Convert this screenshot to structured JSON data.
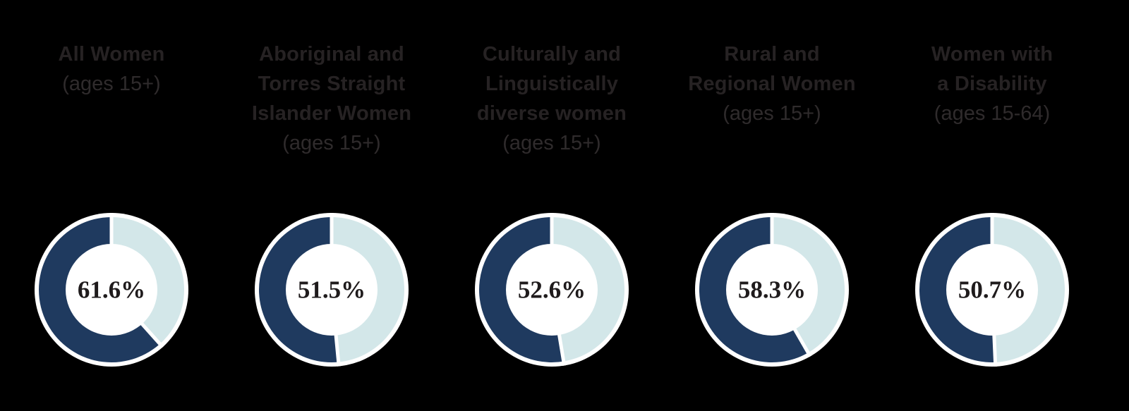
{
  "page": {
    "background_color": "#000000",
    "heading_color": "#262223",
    "subtitle_color": "#2f2b2c",
    "value_text_color": "#1f1b1c"
  },
  "chart_data": {
    "type": "pie",
    "variant": "donut-multiples",
    "units": "%",
    "fill_direction": "counterclockwise-from-top",
    "colors": {
      "filled_segment": "#1f3a5f",
      "remainder_segment": "#d3e7e9",
      "outline_and_separators": "#ffffff"
    },
    "charts": [
      {
        "title_lines": [
          "All Women"
        ],
        "subtitle": "(ages 15+)",
        "value": 61.6,
        "label": "61.6%"
      },
      {
        "title_lines": [
          "Aboriginal and",
          "Torres Straight",
          "Islander Women"
        ],
        "subtitle": "(ages 15+)",
        "value": 51.5,
        "label": "51.5%"
      },
      {
        "title_lines": [
          "Culturally and",
          "Linguistically",
          "diverse women"
        ],
        "subtitle": "(ages 15+)",
        "value": 52.6,
        "label": "52.6%"
      },
      {
        "title_lines": [
          "Rural and",
          "Regional Women"
        ],
        "subtitle": "(ages 15+)",
        "value": 58.3,
        "label": "58.3%"
      },
      {
        "title_lines": [
          "Women with",
          "a Disability"
        ],
        "subtitle": "(ages 15-64)",
        "value": 50.7,
        "label": "50.7%"
      }
    ]
  }
}
